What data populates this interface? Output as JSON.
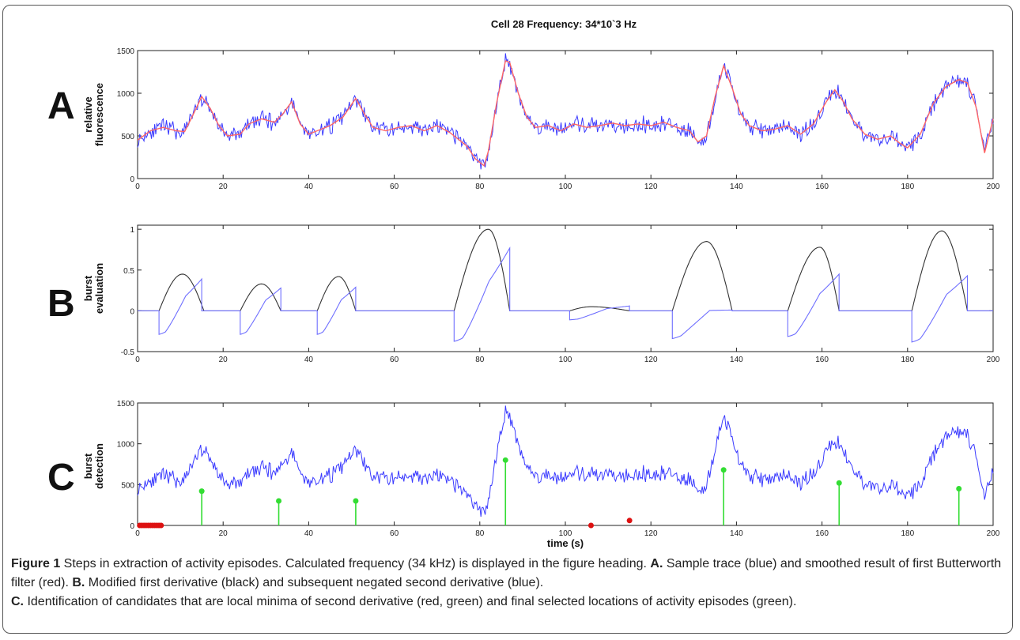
{
  "figure_title": "Cell 28 Frequency: 34*10`3 Hz",
  "caption": {
    "line1_label": "Figure 1",
    "line1_text": " Steps in extraction of activity episodes. Calculated frequency (34 kHz) is displayed in the figure heading. ",
    "line1_a_label": "A.",
    "line1_a_text": " Sample trace (blue) and smoothed result of first Butterworth filter (red). ",
    "line2_b_label": "B.",
    "line2_b_text": " Modified first derivative (black) and subsequent negated second derivative (blue).",
    "line3_c_label": "C.",
    "line3_c_text": " Identification of candidates that are local minima of second derivative (red, green) and final selected locations of activity episodes (green)."
  },
  "colors": {
    "raw_trace": "#3a3aff",
    "smoothed": "#ff6666",
    "first_derivative": "#333333",
    "second_derivative": "#6f6fff",
    "green_marker": "#33dd33",
    "red_marker": "#dd1111"
  },
  "chart_data": [
    {
      "type": "line",
      "panel": "A",
      "ylabel": [
        "relative",
        "fluorescence"
      ],
      "xlim": [
        0,
        200
      ],
      "ylim": [
        0,
        1500
      ],
      "xticks": [
        0,
        20,
        40,
        60,
        80,
        100,
        120,
        140,
        160,
        180,
        200
      ],
      "yticks": [
        0,
        500,
        1000,
        1500
      ],
      "series": [
        {
          "values_xy": [
            [
              0,
              450
            ],
            [
              3,
              560
            ],
            [
              6,
              600
            ],
            [
              9,
              560
            ],
            [
              11,
              550
            ],
            [
              13,
              750
            ],
            [
              15,
              960
            ],
            [
              17,
              820
            ],
            [
              19,
              620
            ],
            [
              21,
              500
            ],
            [
              24,
              520
            ],
            [
              26,
              640
            ],
            [
              29,
              700
            ],
            [
              32,
              660
            ],
            [
              34,
              760
            ],
            [
              36,
              900
            ],
            [
              38,
              640
            ],
            [
              40,
              520
            ],
            [
              42,
              560
            ],
            [
              45,
              620
            ],
            [
              48,
              720
            ],
            [
              51,
              940
            ],
            [
              53,
              760
            ],
            [
              55,
              600
            ],
            [
              58,
              560
            ],
            [
              61,
              600
            ],
            [
              64,
              620
            ],
            [
              67,
              560
            ],
            [
              70,
              620
            ],
            [
              73,
              540
            ],
            [
              75,
              460
            ],
            [
              77,
              380
            ],
            [
              79,
              230
            ],
            [
              81,
              150
            ],
            [
              82,
              320
            ],
            [
              84,
              900
            ],
            [
              86,
              1380
            ],
            [
              87,
              1360
            ],
            [
              89,
              1000
            ],
            [
              91,
              720
            ],
            [
              93,
              600
            ],
            [
              96,
              620
            ],
            [
              99,
              560
            ],
            [
              102,
              640
            ],
            [
              105,
              600
            ],
            [
              108,
              620
            ],
            [
              111,
              650
            ],
            [
              114,
              620
            ],
            [
              117,
              640
            ],
            [
              120,
              620
            ],
            [
              123,
              660
            ],
            [
              126,
              600
            ],
            [
              129,
              560
            ],
            [
              131,
              430
            ],
            [
              133,
              500
            ],
            [
              135,
              960
            ],
            [
              137,
              1320
            ],
            [
              139,
              1060
            ],
            [
              141,
              760
            ],
            [
              143,
              620
            ],
            [
              146,
              560
            ],
            [
              149,
              580
            ],
            [
              152,
              620
            ],
            [
              155,
              520
            ],
            [
              158,
              640
            ],
            [
              161,
              900
            ],
            [
              163,
              1040
            ],
            [
              165,
              900
            ],
            [
              167,
              700
            ],
            [
              170,
              520
            ],
            [
              173,
              460
            ],
            [
              176,
              500
            ],
            [
              178,
              420
            ],
            [
              180,
              360
            ],
            [
              183,
              520
            ],
            [
              186,
              880
            ],
            [
              189,
              1080
            ],
            [
              192,
              1160
            ],
            [
              194,
              1120
            ],
            [
              196,
              840
            ],
            [
              198,
              300
            ],
            [
              200,
              700
            ]
          ]
        }
      ]
    },
    {
      "type": "line",
      "panel": "B",
      "ylabel": [
        "burst",
        "evaluation"
      ],
      "xlim": [
        0,
        200
      ],
      "ylim": [
        -0.5,
        1.05
      ],
      "xticks": [
        0,
        20,
        40,
        60,
        80,
        100,
        120,
        140,
        160,
        180,
        200
      ],
      "yticks": [
        -0.5,
        0,
        0.5,
        1
      ],
      "ytick_labels": [
        "-0.5",
        "0",
        "0.5",
        "1"
      ],
      "series": [
        {
          "name": "",
          "humps": [
            [
              5,
              10.5,
              15.5,
              0.45
            ],
            [
              24,
              29,
              33.5,
              0.33
            ],
            [
              42,
              47,
              51,
              0.42
            ],
            [
              74,
              82,
              87,
              1.0
            ],
            [
              101,
              106,
              115,
              0.05
            ],
            [
              125,
              133,
              139,
              0.85
            ],
            [
              152,
              159.5,
              164,
              0.78
            ],
            [
              181,
              188,
              194,
              0.98
            ]
          ]
        },
        {
          "name": "",
          "dips": [
            [
              5,
              15,
              -0.34,
              0.39
            ],
            [
              24,
              33.5,
              -0.34,
              0.28
            ],
            [
              42,
              51,
              -0.34,
              0.29
            ],
            [
              74,
              87,
              -0.44,
              0.77
            ],
            [
              101,
              115,
              -0.13,
              0.06
            ],
            [
              125,
              139,
              -0.4,
              0.01
            ],
            [
              152,
              164,
              -0.37,
              0.45
            ],
            [
              181,
              194,
              -0.45,
              0.43
            ]
          ]
        }
      ]
    },
    {
      "type": "line",
      "panel": "C",
      "ylabel": [
        "burst",
        "detection"
      ],
      "xlabel": "time (s)",
      "xlim": [
        0,
        200
      ],
      "ylim": [
        0,
        1500
      ],
      "xticks": [
        0,
        20,
        40,
        60,
        80,
        100,
        120,
        140,
        160,
        180,
        200
      ],
      "yticks": [
        0,
        500,
        1000,
        1500
      ],
      "green_stems": [
        [
          15,
          420
        ],
        [
          33,
          300
        ],
        [
          51,
          300
        ],
        [
          86,
          800
        ],
        [
          137,
          680
        ],
        [
          164,
          520
        ],
        [
          192,
          450
        ]
      ],
      "red_points": [
        [
          0.5,
          0
        ],
        [
          1,
          0
        ],
        [
          1.5,
          0
        ],
        [
          2,
          0
        ],
        [
          2.5,
          0
        ],
        [
          3,
          0
        ],
        [
          3.5,
          0
        ],
        [
          4,
          0
        ],
        [
          4.5,
          0
        ],
        [
          5,
          0
        ],
        [
          5.5,
          0
        ],
        [
          106,
          0
        ],
        [
          115,
          60
        ]
      ]
    }
  ]
}
